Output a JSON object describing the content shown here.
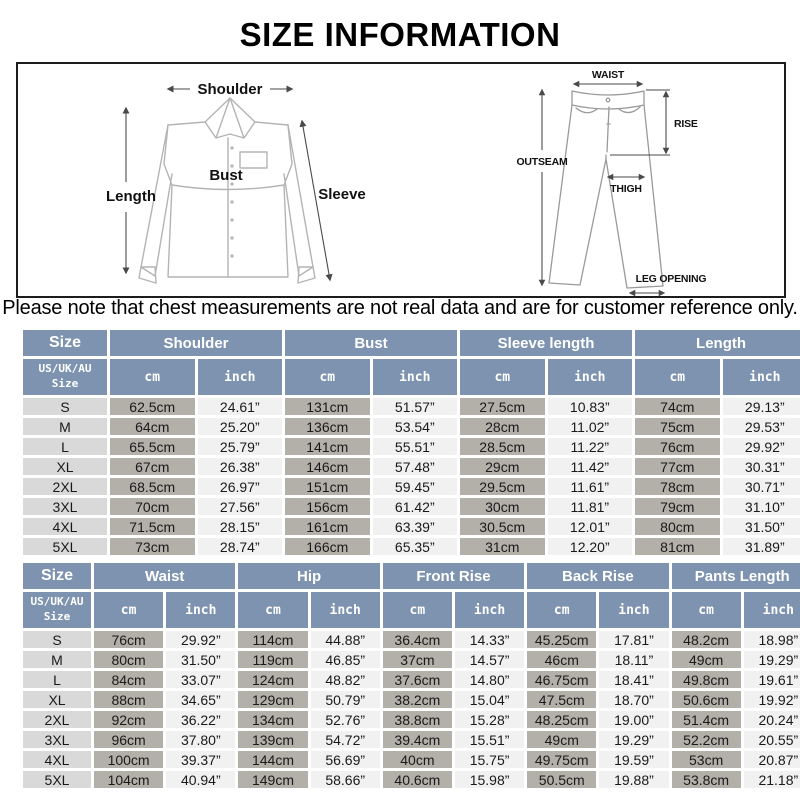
{
  "title": "SIZE INFORMATION",
  "note": "Please note that chest measurements are not real data and are for customer reference only.",
  "colors": {
    "header_bg": "#7d93b0",
    "header_text": "#ffffff",
    "size_col_bg": "#d9d9d9",
    "cm_col_bg": "#b3afa9",
    "inch_col_bg": "#f1f1f1",
    "body_text": "#1a1a1a"
  },
  "diagram": {
    "shirt_labels": {
      "shoulder": "Shoulder",
      "length": "Length",
      "bust": "Bust",
      "sleeve": "Sleeve"
    },
    "pants_labels": {
      "waist": "WAIST",
      "rise": "RISE",
      "outseam": "OUTSEAM",
      "thigh": "THIGH",
      "leg_opening": "LEG OPENING"
    }
  },
  "tables": [
    {
      "size_header": "Size",
      "size_subheader": "US/UK/AU\nSize",
      "unit_cm": "cm",
      "unit_inch": "inch",
      "groups": [
        "Shoulder",
        "Bust",
        "Sleeve length",
        "Length"
      ],
      "rows": [
        {
          "size": "S",
          "values": [
            "62.5cm",
            "24.61”",
            "131cm",
            "51.57”",
            "27.5cm",
            "10.83”",
            "74cm",
            "29.13”"
          ]
        },
        {
          "size": "M",
          "values": [
            "64cm",
            "25.20”",
            "136cm",
            "53.54”",
            "28cm",
            "11.02”",
            "75cm",
            "29.53”"
          ]
        },
        {
          "size": "L",
          "values": [
            "65.5cm",
            "25.79”",
            "141cm",
            "55.51”",
            "28.5cm",
            "11.22”",
            "76cm",
            "29.92”"
          ]
        },
        {
          "size": "XL",
          "values": [
            "67cm",
            "26.38”",
            "146cm",
            "57.48”",
            "29cm",
            "11.42”",
            "77cm",
            "30.31”"
          ]
        },
        {
          "size": "2XL",
          "values": [
            "68.5cm",
            "26.97”",
            "151cm",
            "59.45”",
            "29.5cm",
            "11.61”",
            "78cm",
            "30.71”"
          ]
        },
        {
          "size": "3XL",
          "values": [
            "70cm",
            "27.56”",
            "156cm",
            "61.42”",
            "30cm",
            "11.81”",
            "79cm",
            "31.10”"
          ]
        },
        {
          "size": "4XL",
          "values": [
            "71.5cm",
            "28.15”",
            "161cm",
            "63.39”",
            "30.5cm",
            "12.01”",
            "80cm",
            "31.50”"
          ]
        },
        {
          "size": "5XL",
          "values": [
            "73cm",
            "28.74”",
            "166cm",
            "65.35”",
            "31cm",
            "12.20”",
            "81cm",
            "31.89”"
          ]
        }
      ]
    },
    {
      "size_header": "Size",
      "size_subheader": "US/UK/AU\nSize",
      "unit_cm": "cm",
      "unit_inch": "inch",
      "groups": [
        "Waist",
        "Hip",
        "Front Rise",
        "Back Rise",
        "Pants Length"
      ],
      "rows": [
        {
          "size": "S",
          "values": [
            "76cm",
            "29.92”",
            "114cm",
            "44.88”",
            "36.4cm",
            "14.33”",
            "45.25cm",
            "17.81”",
            "48.2cm",
            "18.98”"
          ]
        },
        {
          "size": "M",
          "values": [
            "80cm",
            "31.50”",
            "119cm",
            "46.85”",
            "37cm",
            "14.57”",
            "46cm",
            "18.11”",
            "49cm",
            "19.29”"
          ]
        },
        {
          "size": "L",
          "values": [
            "84cm",
            "33.07”",
            "124cm",
            "48.82”",
            "37.6cm",
            "14.80”",
            "46.75cm",
            "18.41”",
            "49.8cm",
            "19.61”"
          ]
        },
        {
          "size": "XL",
          "values": [
            "88cm",
            "34.65”",
            "129cm",
            "50.79”",
            "38.2cm",
            "15.04”",
            "47.5cm",
            "18.70”",
            "50.6cm",
            "19.92”"
          ]
        },
        {
          "size": "2XL",
          "values": [
            "92cm",
            "36.22”",
            "134cm",
            "52.76”",
            "38.8cm",
            "15.28”",
            "48.25cm",
            "19.00”",
            "51.4cm",
            "20.24”"
          ]
        },
        {
          "size": "3XL",
          "values": [
            "96cm",
            "37.80”",
            "139cm",
            "54.72”",
            "39.4cm",
            "15.51”",
            "49cm",
            "19.29”",
            "52.2cm",
            "20.55”"
          ]
        },
        {
          "size": "4XL",
          "values": [
            "100cm",
            "39.37”",
            "144cm",
            "56.69”",
            "40cm",
            "15.75”",
            "49.75cm",
            "19.59”",
            "53cm",
            "20.87”"
          ]
        },
        {
          "size": "5XL",
          "values": [
            "104cm",
            "40.94”",
            "149cm",
            "58.66”",
            "40.6cm",
            "15.98”",
            "50.5cm",
            "19.88”",
            "53.8cm",
            "21.18”"
          ]
        }
      ]
    }
  ]
}
